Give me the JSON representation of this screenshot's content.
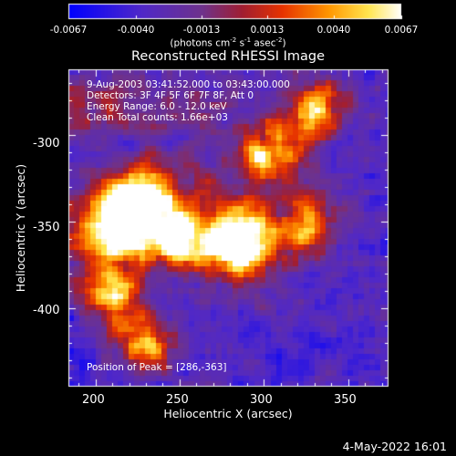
{
  "colorbar": {
    "ticks": [
      "-0.0067",
      "-0.0040",
      "-0.0013",
      "0.0013",
      "0.0040",
      "0.0067"
    ],
    "unit_prefix": "(photons cm",
    "unit_exp1": "-2",
    "unit_mid": " s",
    "unit_exp2": "-1",
    "unit_mid2": " asec",
    "unit_exp3": "-2",
    "unit_suffix": ")",
    "range": [
      -0.0067,
      0.0067
    ]
  },
  "title": "Reconstructed RHESSI Image",
  "info": {
    "time": "9-Aug-2003 03:41:52.000 to 03:43:00.000",
    "detectors": "Detectors: 3F 4F 5F 6F 7F 8F, Att 0",
    "energy": "Energy Range: 6.0 - 12.0 keV",
    "clean": "Clean    Total counts: 1.66e+03",
    "peak": "Position of Peak = [286,-363]"
  },
  "footer": {
    "date": "4-May-2022 16:01"
  },
  "chart_data": {
    "type": "heatmap",
    "title": "Reconstructed RHESSI Image",
    "xlabel": "Heliocentric X (arcsec)",
    "ylabel": "Heliocentric Y (arcsec)",
    "xlim": [
      184,
      374
    ],
    "ylim": [
      -445,
      -262
    ],
    "x_ticks": [
      200,
      250,
      300,
      350
    ],
    "y_ticks": [
      -300,
      -350,
      -400
    ],
    "colormap": "RHESSI flame (blue-purple-red-orange-yellow-white)",
    "colorbar_range": [
      -0.0067,
      0.0067
    ],
    "peak_position": [
      286,
      -363
    ],
    "bright_regions": [
      {
        "x": 226,
        "y": -336,
        "level": "high"
      },
      {
        "x": 213,
        "y": -355,
        "level": "high"
      },
      {
        "x": 286,
        "y": -363,
        "level": "peak"
      },
      {
        "x": 248,
        "y": -360,
        "level": "high"
      },
      {
        "x": 303,
        "y": -310,
        "level": "medium"
      },
      {
        "x": 325,
        "y": -352,
        "level": "medium"
      },
      {
        "x": 210,
        "y": -392,
        "level": "medium"
      },
      {
        "x": 230,
        "y": -420,
        "level": "medium"
      },
      {
        "x": 330,
        "y": -285,
        "level": "medium"
      }
    ]
  }
}
